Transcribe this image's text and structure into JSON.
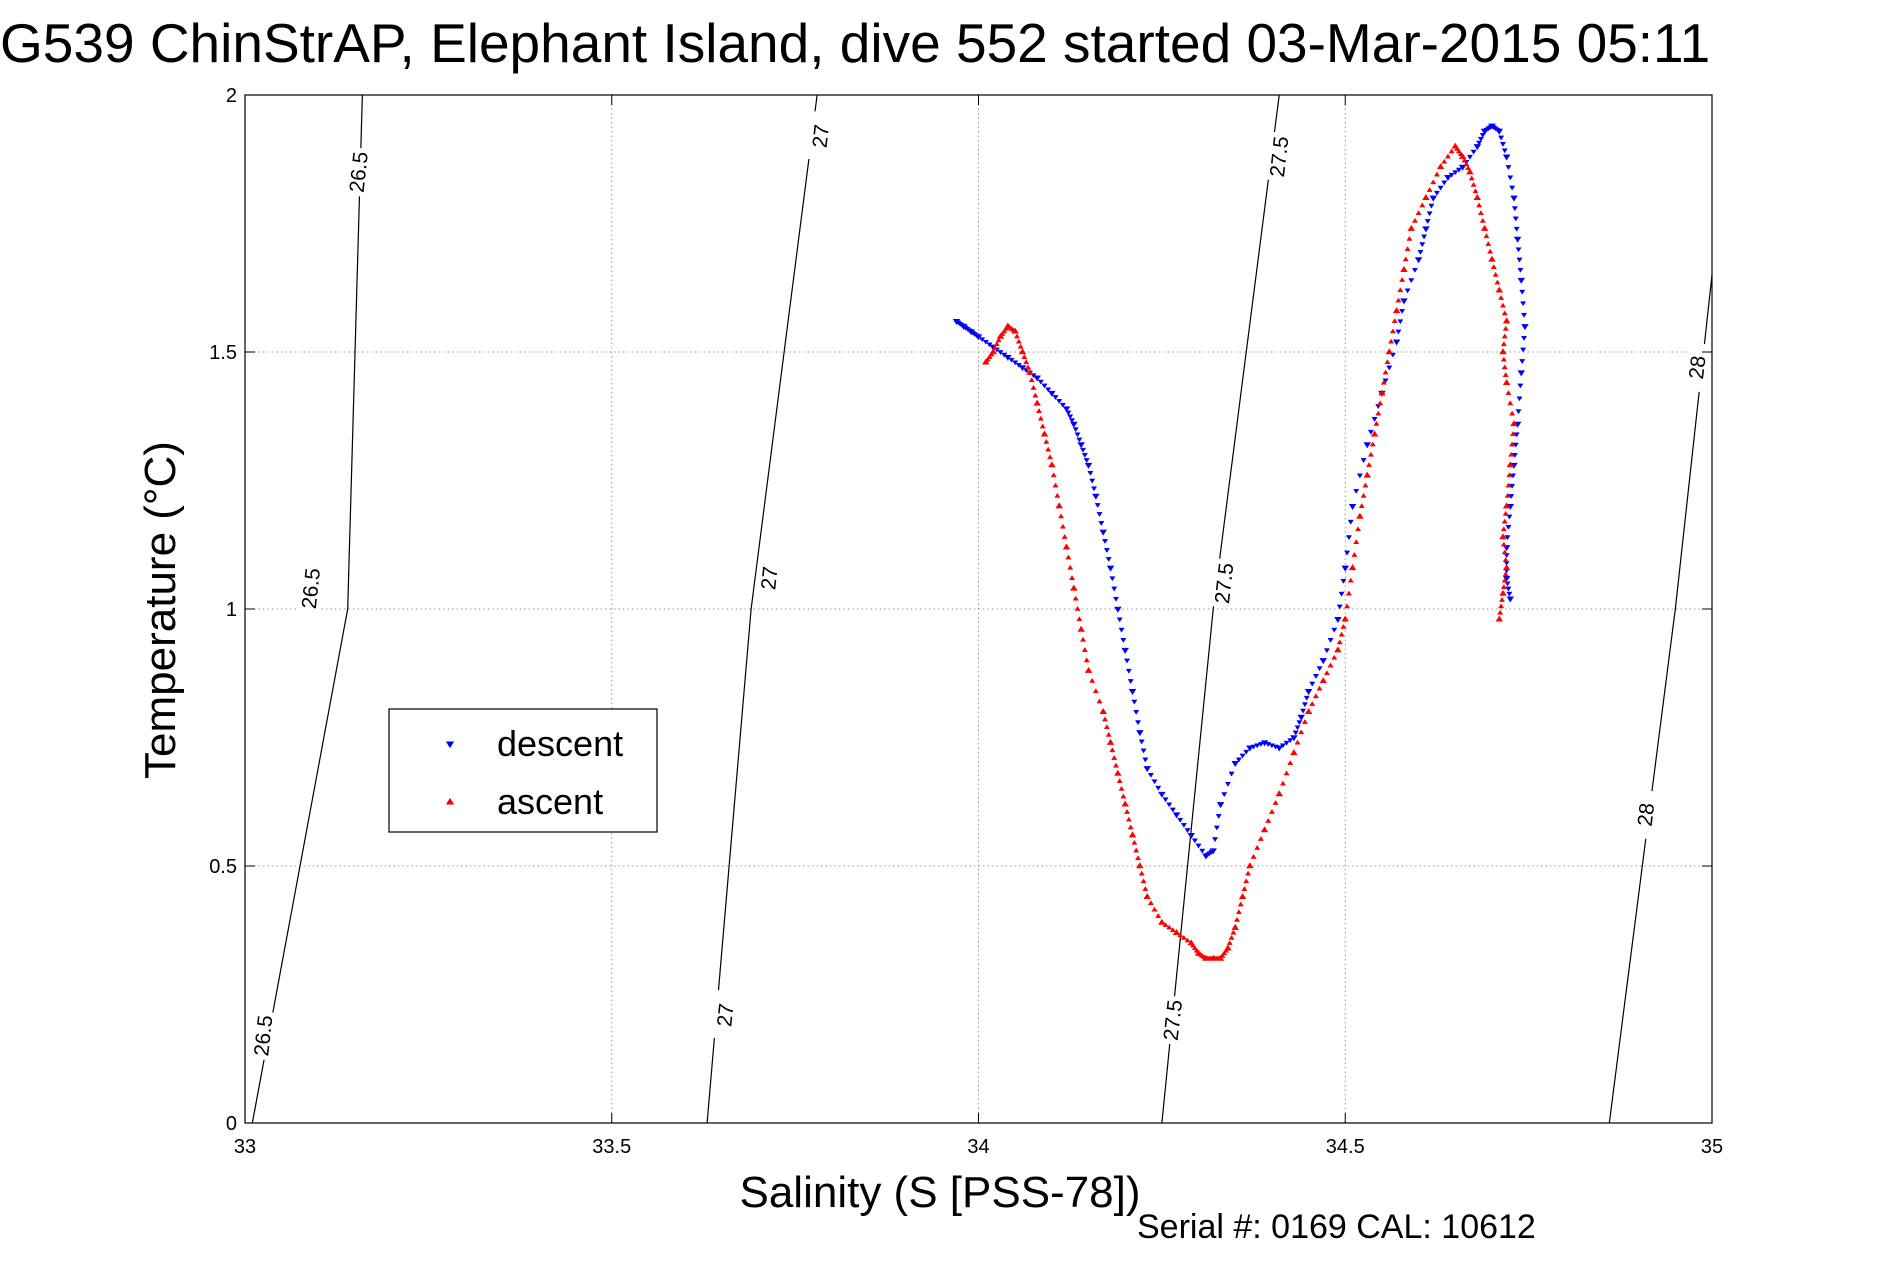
{
  "chart_data": {
    "type": "scatter",
    "title": "G539 ChinStrAP, Elephant Island, dive 552 started 03-Mar-2015 05:11",
    "xlabel": "Salinity (S [PSS-78])",
    "ylabel": "Temperature (°C)",
    "xlim": [
      33,
      35
    ],
    "ylim": [
      0,
      2
    ],
    "xticks": [
      33,
      33.5,
      34,
      34.5,
      35
    ],
    "yticks": [
      0,
      0.5,
      1,
      1.5,
      2
    ],
    "xtick_labels": [
      "33",
      "33.5",
      "34",
      "34.5",
      "35"
    ],
    "ytick_labels": [
      "0",
      "0.5",
      "1",
      "1.5",
      "2"
    ],
    "grid": true,
    "legend_position": "left",
    "footer": "Serial #: 0169 CAL: 10612",
    "isopycnals": [
      {
        "label": "26.5",
        "points": [
          [
            33.01,
            0.0
          ],
          [
            33.14,
            1.0
          ],
          [
            33.16,
            2.0
          ]
        ],
        "label_positions": [
          [
            33.025,
            0.17
          ],
          [
            33.09,
            1.04
          ],
          [
            33.155,
            1.85
          ]
        ]
      },
      {
        "label": "27",
        "points": [
          [
            33.63,
            0.0
          ],
          [
            33.69,
            1.0
          ],
          [
            33.78,
            2.0
          ]
        ],
        "label_positions": [
          [
            33.655,
            0.21
          ],
          [
            33.715,
            1.06
          ],
          [
            33.785,
            1.92
          ]
        ]
      },
      {
        "label": "27.5",
        "points": [
          [
            34.25,
            0.0
          ],
          [
            34.32,
            1.0
          ],
          [
            34.41,
            2.0
          ]
        ],
        "label_positions": [
          [
            34.265,
            0.2
          ],
          [
            34.335,
            1.05
          ],
          [
            34.41,
            1.88
          ]
        ]
      },
      {
        "label": "28",
        "points": [
          [
            34.86,
            0.0
          ],
          [
            34.95,
            1.0
          ],
          [
            35.0,
            1.65
          ]
        ],
        "label_positions": [
          [
            34.91,
            0.6
          ],
          [
            34.98,
            1.47
          ]
        ]
      }
    ],
    "series": [
      {
        "name": "descent",
        "color": "#0000ff",
        "marker": "triangle-down",
        "x": [
          33.97,
          33.98,
          33.99,
          34.0,
          34.02,
          34.04,
          34.06,
          34.08,
          34.1,
          34.12,
          34.13,
          34.14,
          34.15,
          34.16,
          34.17,
          34.18,
          34.19,
          34.2,
          34.21,
          34.22,
          34.23,
          34.25,
          34.27,
          34.29,
          34.31,
          34.32,
          34.33,
          34.35,
          34.37,
          34.39,
          34.41,
          34.43,
          34.44,
          34.45,
          34.47,
          34.49,
          34.5,
          34.51,
          34.53,
          34.55,
          34.57,
          34.58,
          34.6,
          34.61,
          34.62,
          34.64,
          34.66,
          34.68,
          34.69,
          34.7,
          34.71,
          34.72,
          34.73,
          34.735,
          34.74,
          34.745,
          34.74,
          34.735,
          34.73,
          34.725,
          34.72,
          34.72,
          34.725
        ],
        "y": [
          1.56,
          1.55,
          1.54,
          1.53,
          1.51,
          1.49,
          1.47,
          1.45,
          1.42,
          1.39,
          1.36,
          1.32,
          1.28,
          1.22,
          1.15,
          1.08,
          1.0,
          0.92,
          0.84,
          0.76,
          0.69,
          0.64,
          0.6,
          0.56,
          0.52,
          0.53,
          0.62,
          0.7,
          0.73,
          0.74,
          0.73,
          0.75,
          0.79,
          0.84,
          0.9,
          0.98,
          1.08,
          1.2,
          1.32,
          1.42,
          1.52,
          1.6,
          1.68,
          1.74,
          1.8,
          1.84,
          1.86,
          1.9,
          1.93,
          1.94,
          1.93,
          1.88,
          1.8,
          1.72,
          1.64,
          1.55,
          1.46,
          1.36,
          1.28,
          1.2,
          1.12,
          1.06,
          1.02
        ]
      },
      {
        "name": "ascent",
        "color": "#ff0000",
        "marker": "triangle-up",
        "x": [
          34.71,
          34.715,
          34.72,
          34.715,
          34.72,
          34.725,
          34.73,
          34.72,
          34.715,
          34.72,
          34.71,
          34.7,
          34.69,
          34.68,
          34.67,
          34.66,
          34.65,
          34.63,
          34.61,
          34.59,
          34.58,
          34.57,
          34.56,
          34.55,
          34.54,
          34.53,
          34.52,
          34.51,
          34.5,
          34.49,
          34.47,
          34.45,
          34.43,
          34.41,
          34.39,
          34.37,
          34.36,
          34.35,
          34.34,
          34.33,
          34.32,
          34.31,
          34.3,
          34.29,
          34.27,
          34.25,
          34.23,
          34.22,
          34.21,
          34.2,
          34.19,
          34.18,
          34.17,
          34.15,
          34.14,
          34.13,
          34.12,
          34.11,
          34.1,
          34.09,
          34.08,
          34.07,
          34.06,
          34.05,
          34.04,
          34.03,
          34.02,
          34.01
        ],
        "y": [
          0.98,
          1.03,
          1.08,
          1.14,
          1.2,
          1.28,
          1.36,
          1.44,
          1.5,
          1.56,
          1.62,
          1.68,
          1.74,
          1.8,
          1.85,
          1.88,
          1.9,
          1.86,
          1.8,
          1.74,
          1.66,
          1.58,
          1.5,
          1.42,
          1.34,
          1.26,
          1.18,
          1.08,
          0.98,
          0.92,
          0.86,
          0.8,
          0.72,
          0.64,
          0.57,
          0.5,
          0.44,
          0.38,
          0.34,
          0.32,
          0.32,
          0.32,
          0.33,
          0.35,
          0.37,
          0.39,
          0.44,
          0.5,
          0.56,
          0.62,
          0.68,
          0.74,
          0.8,
          0.88,
          0.96,
          1.04,
          1.12,
          1.2,
          1.28,
          1.34,
          1.4,
          1.46,
          1.5,
          1.54,
          1.55,
          1.53,
          1.5,
          1.48
        ]
      }
    ]
  }
}
